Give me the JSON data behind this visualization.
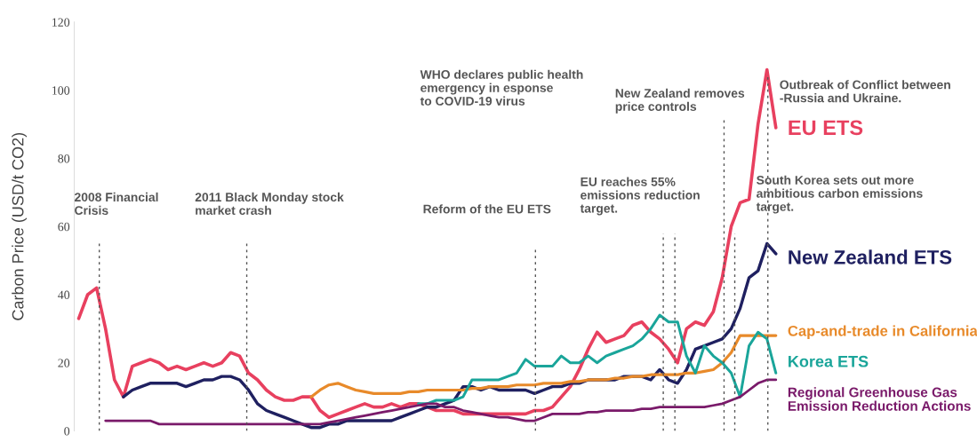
{
  "chart_data": {
    "type": "line",
    "ylabel": "Carbon Price (USD/t CO2)",
    "categories": [
      null,
      null,
      null,
      null,
      null,
      null,
      null,
      null,
      null,
      null,
      null,
      null,
      null,
      null,
      null,
      null,
      null,
      null,
      null,
      null,
      null,
      null,
      null,
      null,
      null,
      null,
      null,
      null,
      null,
      null,
      null,
      null,
      null,
      null,
      null,
      null,
      null,
      null,
      null,
      null,
      null,
      null,
      null,
      null,
      null,
      null,
      null,
      null,
      null,
      null,
      null,
      null,
      null,
      null,
      null,
      null,
      null,
      null,
      null,
      null,
      null,
      null,
      null,
      null,
      null,
      null,
      null,
      null,
      null,
      null,
      null,
      null,
      null,
      null,
      null,
      null,
      null,
      null,
      null
    ],
    "ylim": [
      0,
      120
    ],
    "yticks": [
      0,
      20,
      40,
      60,
      80,
      100,
      120
    ],
    "grid": false,
    "legend": false,
    "tick_labels": "y",
    "series": [
      {
        "name": "EU ETS",
        "color": "#e8405f",
        "values": [
          33,
          40,
          42,
          30,
          15,
          10,
          19,
          20,
          21,
          20,
          18,
          19,
          18,
          19,
          20,
          19,
          20,
          23,
          22,
          17,
          15,
          12,
          10,
          9,
          9,
          10,
          10,
          6,
          4,
          5,
          6,
          7,
          8,
          7,
          7,
          8,
          7,
          8,
          8,
          7,
          6,
          6,
          6,
          5,
          5,
          5,
          5,
          5,
          5,
          5,
          5,
          6,
          6,
          7,
          10,
          13,
          18,
          24,
          29,
          26,
          27,
          28,
          31,
          32,
          29,
          27,
          24,
          20,
          30,
          32,
          31,
          35,
          45,
          60,
          67,
          68,
          90,
          106,
          89
        ]
      },
      {
        "name": "New Zealand ETS",
        "color": "#1f2060",
        "values": [
          null,
          null,
          null,
          null,
          null,
          10,
          12,
          13,
          14,
          14,
          14,
          14,
          13,
          14,
          15,
          15,
          16,
          16,
          15,
          12,
          8,
          6,
          5,
          4,
          3,
          2,
          1,
          1,
          2,
          2,
          3,
          3,
          3,
          3,
          3,
          3,
          4,
          5,
          6,
          7,
          7,
          8,
          9,
          13,
          13,
          12,
          13,
          12,
          12,
          12,
          12,
          11,
          12,
          13,
          13,
          14,
          14,
          15,
          15,
          15,
          15,
          16,
          16,
          16,
          15,
          18,
          15,
          14,
          18,
          24,
          25,
          26,
          27,
          30,
          36,
          45,
          47,
          55,
          52
        ]
      },
      {
        "name": "Cap-and-trade in California",
        "color": "#e88a2a",
        "values": [
          null,
          null,
          null,
          null,
          null,
          null,
          null,
          null,
          null,
          null,
          null,
          null,
          null,
          null,
          null,
          null,
          null,
          null,
          null,
          null,
          null,
          null,
          null,
          null,
          null,
          null,
          10,
          12,
          13.5,
          14,
          13,
          12,
          11.5,
          11,
          11,
          11,
          11,
          11.5,
          11.5,
          12,
          12,
          12,
          12,
          12,
          12.5,
          12.5,
          13,
          13,
          13,
          13.5,
          13.5,
          13.5,
          14,
          14,
          14,
          14.5,
          14.5,
          15,
          15,
          15,
          15.5,
          15.5,
          16,
          16,
          16.5,
          16.5,
          16.5,
          16.5,
          17,
          17,
          17.5,
          18,
          20,
          23,
          28,
          28,
          28,
          28,
          28
        ]
      },
      {
        "name": "Korea ETS",
        "color": "#1aa59a",
        "values": [
          null,
          null,
          null,
          null,
          null,
          null,
          null,
          null,
          null,
          null,
          null,
          null,
          null,
          null,
          null,
          null,
          null,
          null,
          null,
          null,
          null,
          null,
          null,
          null,
          null,
          null,
          null,
          null,
          null,
          null,
          null,
          null,
          null,
          null,
          null,
          null,
          null,
          null,
          8,
          8,
          9,
          9,
          9,
          10,
          15,
          15,
          15,
          15,
          16,
          17,
          21,
          19,
          19,
          19,
          22,
          20,
          20,
          22,
          20,
          22,
          23,
          24,
          25,
          27,
          30,
          34,
          32,
          32,
          22,
          17,
          25,
          22,
          20,
          17,
          10,
          25,
          29,
          27,
          17
        ]
      },
      {
        "name": "Regional Greenhouse Gas\nEmission Reduction Actions",
        "color": "#7a1a6a",
        "values": [
          null,
          null,
          null,
          3,
          3,
          3,
          3,
          3,
          3,
          2,
          2,
          2,
          2,
          2,
          2,
          2,
          2,
          2,
          2,
          2,
          2,
          2,
          2,
          2,
          2,
          2,
          2,
          2,
          2.5,
          3,
          3.5,
          4,
          4.5,
          5,
          5.5,
          6,
          6.5,
          7,
          7.5,
          8,
          8,
          7,
          7,
          6,
          5.5,
          5,
          4.5,
          4,
          4,
          3.5,
          3,
          3,
          4,
          5,
          5,
          5,
          5,
          5.5,
          5.5,
          6,
          6,
          6,
          6,
          6.5,
          6.5,
          7,
          7,
          7,
          7,
          7,
          7,
          7.5,
          8,
          9,
          10,
          12,
          14,
          15,
          15
        ]
      }
    ],
    "annotations": [
      "2008 Financial\nCrisis",
      "2011 Black Monday stock\nmarket crash",
      "Reform of the EU ETS",
      "EU reaches 55%\nemissions reduction\ntarget.",
      "WHO declares public health\nemergency in esponse\nto COVID-19 virus",
      "New Zealand removes\nprice controls",
      "South Korea sets out more\nambitious carbon emissions\ntarget.",
      "Outbreak of Conflict between\n-Russia and Ukraine."
    ]
  }
}
